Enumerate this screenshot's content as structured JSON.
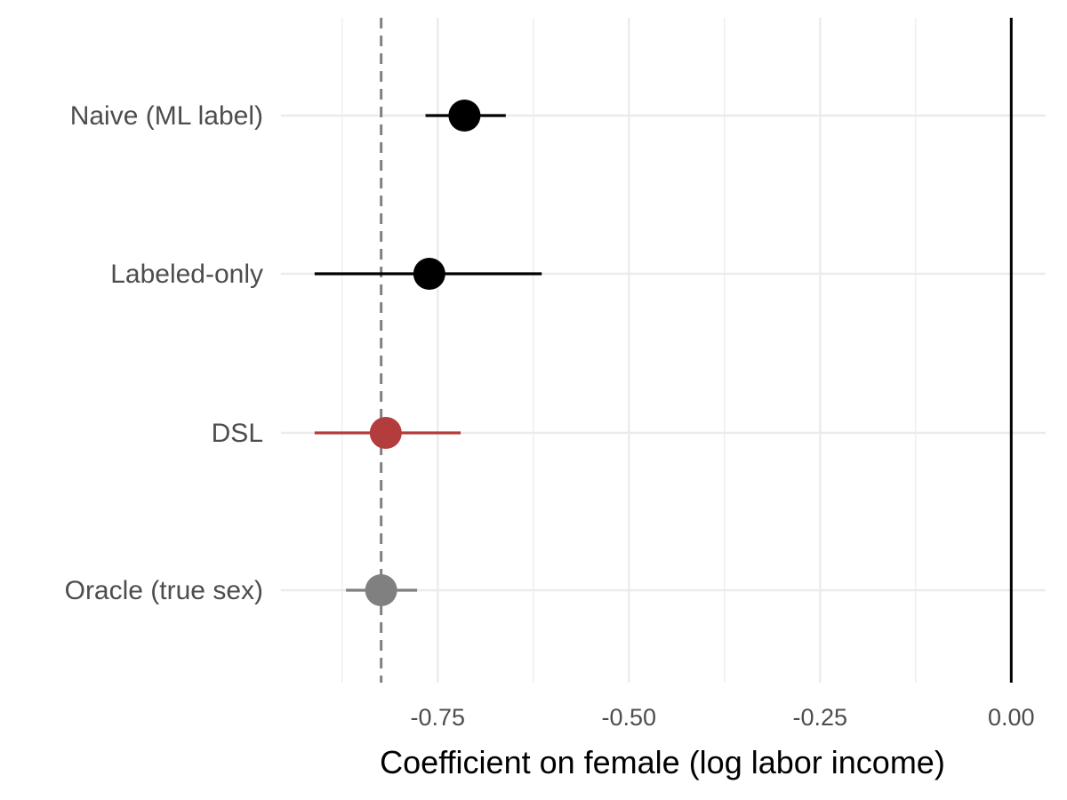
{
  "chart_data": {
    "type": "scatter",
    "subtype": "coefficient-plot",
    "title": "",
    "xlabel": "Coefficient on female (log labor income)",
    "ylabel": "",
    "xlim": [
      -0.955,
      0.045
    ],
    "xticks": [
      -0.75,
      -0.5,
      -0.25,
      0.0
    ],
    "xtick_labels": [
      "-0.75",
      "-0.50",
      "-0.25",
      "0.00"
    ],
    "grid": true,
    "legend": "none",
    "categories": [
      "Naive (ML label)",
      "Labeled-only",
      "DSL",
      "Oracle (true sex)"
    ],
    "points": [
      {
        "label": "Naive (ML label)",
        "estimate": -0.715,
        "ci_low": -0.766,
        "ci_high": -0.661,
        "color": "#000000"
      },
      {
        "label": "Labeled-only",
        "estimate": -0.761,
        "ci_low": -0.911,
        "ci_high": -0.614,
        "color": "#000000"
      },
      {
        "label": "DSL",
        "estimate": -0.818,
        "ci_low": -0.911,
        "ci_high": -0.72,
        "color": "#b33c3c"
      },
      {
        "label": "Oracle (true sex)",
        "estimate": -0.824,
        "ci_low": -0.87,
        "ci_high": -0.777,
        "color": "#808080"
      }
    ],
    "reference_lines": [
      {
        "x": 0.0,
        "style": "solid",
        "color": "#000000"
      },
      {
        "x": -0.824,
        "style": "dashed",
        "color": "#808080"
      }
    ]
  }
}
